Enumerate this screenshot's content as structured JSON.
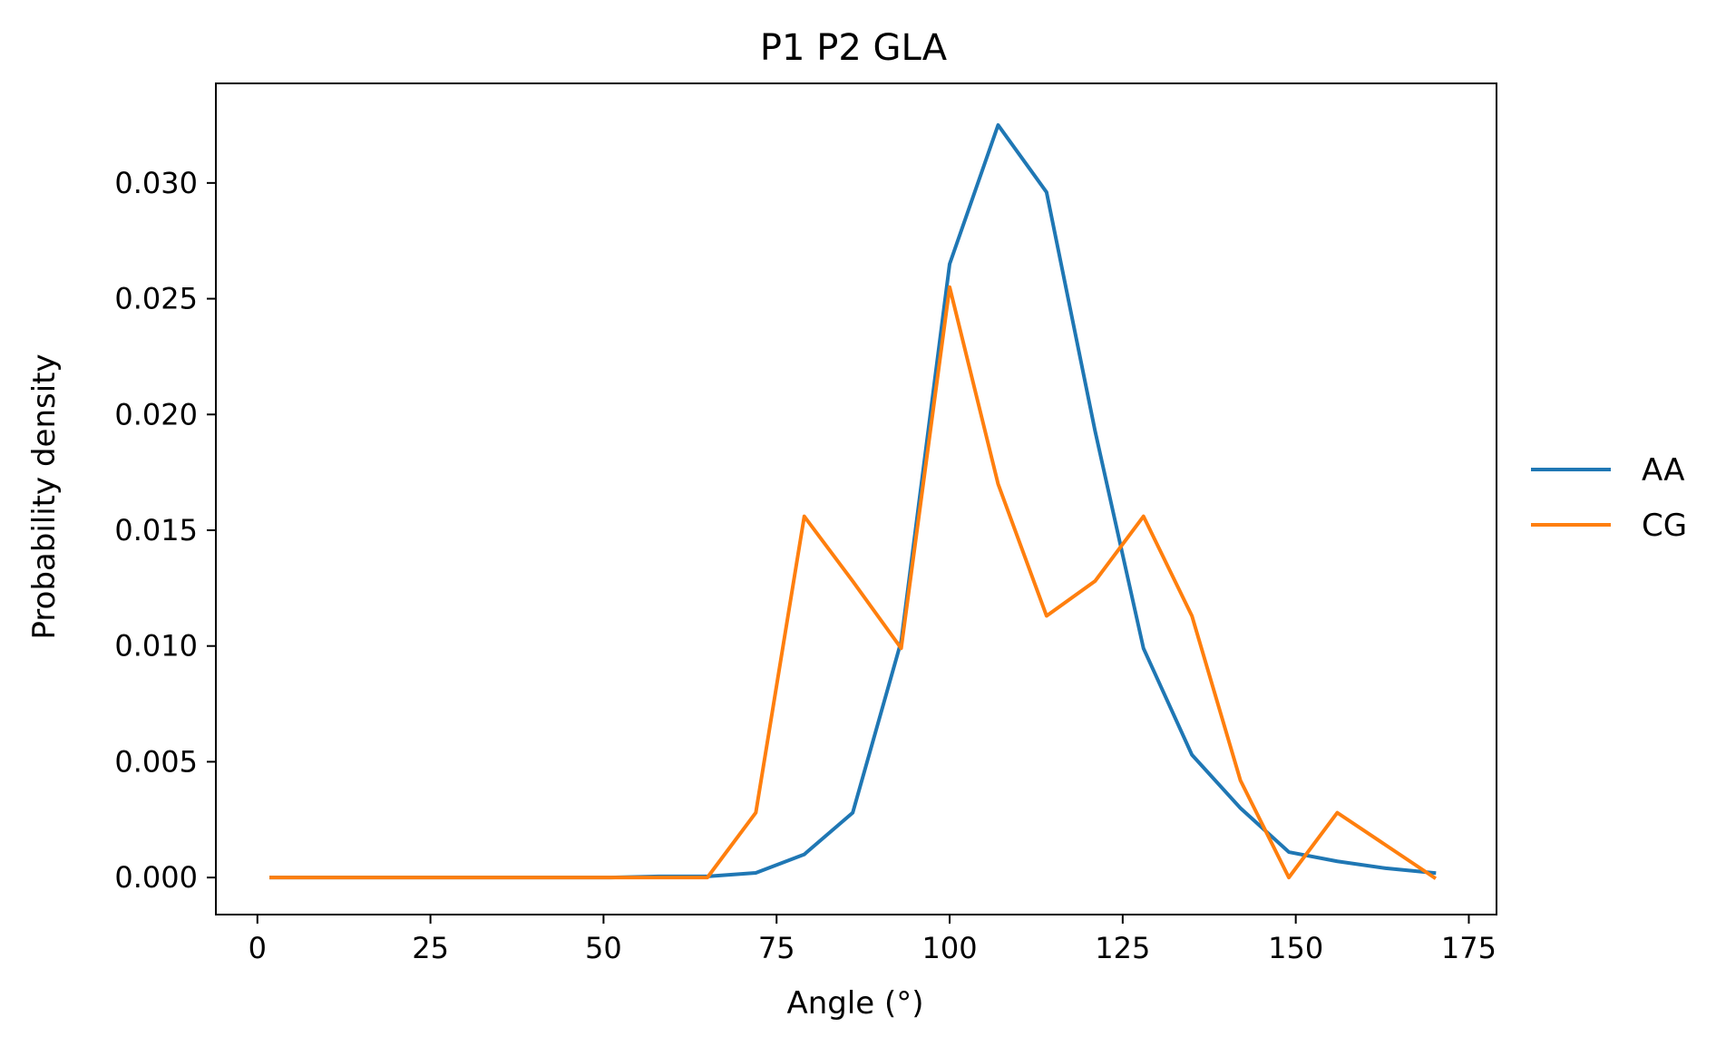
{
  "chart_data": {
    "type": "line",
    "title": "P1 P2 GLA",
    "xlabel": "Angle (°)",
    "ylabel": "Probability density",
    "xlim": [
      -6,
      179
    ],
    "ylim": [
      -0.0016,
      0.0343
    ],
    "xticks": [
      0,
      25,
      50,
      75,
      100,
      125,
      150,
      175
    ],
    "yticks": [
      0.0,
      0.005,
      0.01,
      0.015,
      0.02,
      0.025,
      0.03
    ],
    "ytick_labels": [
      "0.000",
      "0.005",
      "0.010",
      "0.015",
      "0.020",
      "0.025",
      "0.030"
    ],
    "grid": false,
    "legend": {
      "placement": "outside-right"
    },
    "series": [
      {
        "name": "AA",
        "color": "#1f77b4",
        "x": [
          2,
          9,
          16,
          23,
          30,
          37,
          44,
          51,
          58,
          65,
          72,
          79,
          86,
          93,
          100,
          107,
          114,
          121,
          128,
          135,
          142,
          149,
          156,
          163,
          170
        ],
        "y": [
          0.0,
          0.0,
          0.0,
          0.0,
          0.0,
          0.0,
          0.0,
          0.0,
          5e-05,
          5e-05,
          0.0002,
          0.001,
          0.0028,
          0.0102,
          0.0265,
          0.0325,
          0.0296,
          0.0193,
          0.0099,
          0.0053,
          0.003,
          0.0011,
          0.0007,
          0.0004,
          0.0002
        ]
      },
      {
        "name": "CG",
        "color": "#ff7f0e",
        "x": [
          2,
          9,
          16,
          23,
          30,
          37,
          44,
          51,
          58,
          65,
          72,
          79,
          86,
          93,
          100,
          107,
          114,
          121,
          128,
          135,
          142,
          149,
          156,
          163,
          170
        ],
        "y": [
          0.0,
          0.0,
          0.0,
          0.0,
          0.0,
          0.0,
          0.0,
          0.0,
          0.0,
          0.0,
          0.0028,
          0.0156,
          0.0128,
          0.0099,
          0.0255,
          0.017,
          0.0113,
          0.0128,
          0.0156,
          0.0113,
          0.0042,
          0.0,
          0.0028,
          0.0014,
          0.0
        ]
      }
    ]
  }
}
